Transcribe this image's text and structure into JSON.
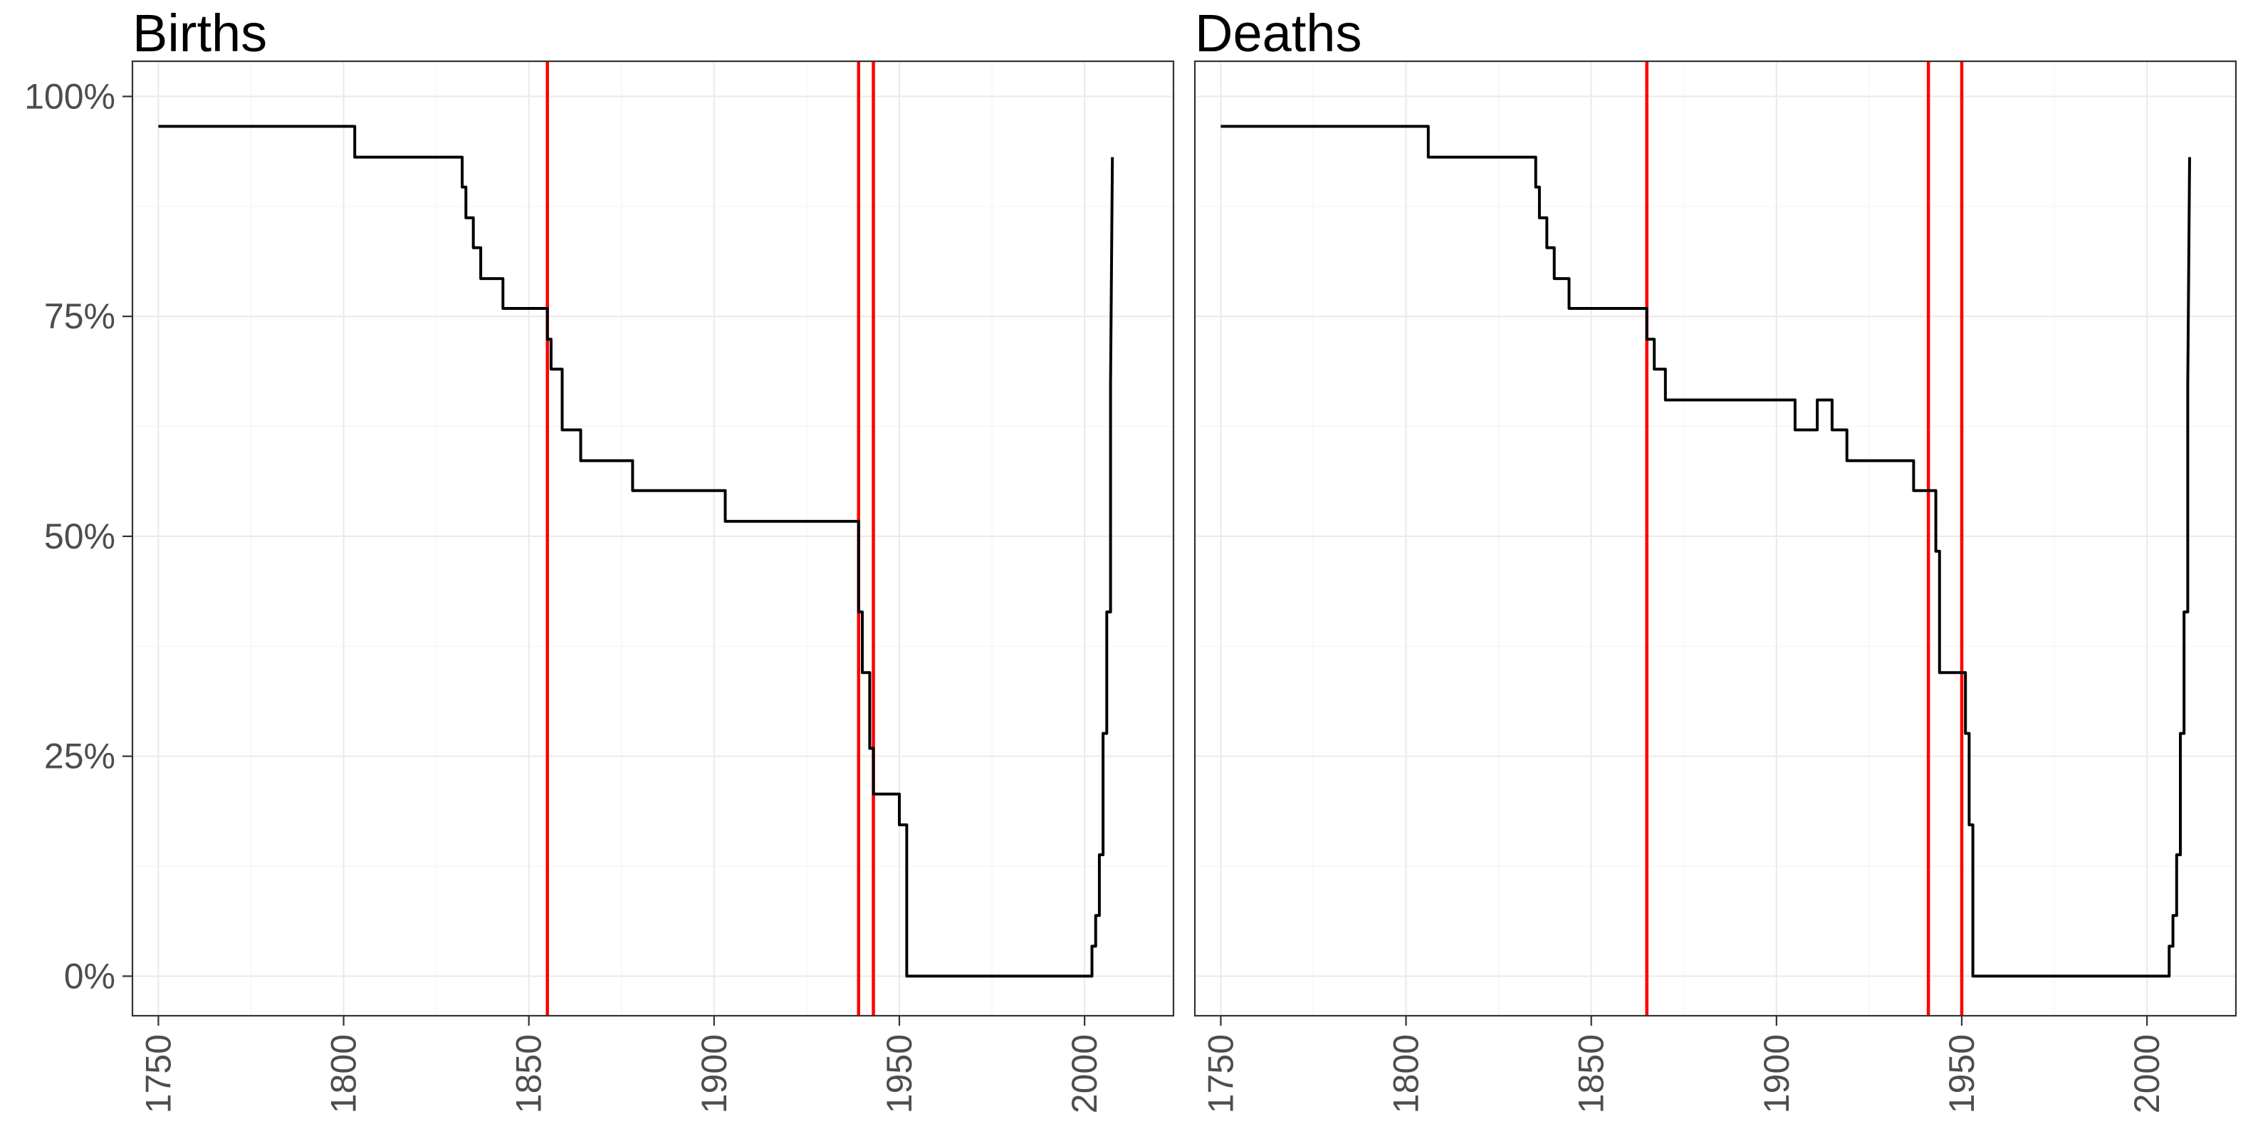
{
  "chart_data": [
    {
      "type": "line",
      "title": "Births",
      "xlabel": "",
      "ylabel": "",
      "xlim": [
        1743,
        2024
      ],
      "ylim": [
        -0.045,
        1.04
      ],
      "x_ticks": [
        1750,
        1800,
        1850,
        1900,
        1950,
        2000
      ],
      "x_tick_labels": [
        "1750",
        "1800",
        "1850",
        "1900",
        "1950",
        "2000"
      ],
      "y_ticks": [
        0,
        0.25,
        0.5,
        0.75,
        1.0
      ],
      "y_tick_labels": [
        "0%",
        "25%",
        "50%",
        "75%",
        "100%"
      ],
      "grid": true,
      "vlines": [
        1855,
        1939,
        1943
      ],
      "vline_color": "#ff0000",
      "line_color": "#000000",
      "series": [
        {
          "x": [
            1750,
            1803,
            1803,
            1832,
            1832,
            1833,
            1833,
            1835,
            1835,
            1837,
            1837,
            1843,
            1843,
            1846,
            1846,
            1855,
            1855,
            1856,
            1856,
            1859,
            1859,
            1864,
            1864,
            1878,
            1878,
            1903,
            1903,
            1917,
            1917,
            1939,
            1939,
            1940,
            1940,
            1942,
            1942,
            1943,
            1943,
            1950,
            1950,
            1952,
            1952,
            2002,
            2002,
            2003,
            2003,
            2004,
            2004,
            2005,
            2005,
            2006,
            2006,
            2007,
            2007,
            2007.5
          ],
          "y": [
            0.966,
            0.966,
            0.931,
            0.931,
            0.897,
            0.897,
            0.862,
            0.862,
            0.828,
            0.828,
            0.793,
            0.793,
            0.759,
            0.759,
            0.759,
            0.759,
            0.724,
            0.724,
            0.69,
            0.69,
            0.621,
            0.621,
            0.586,
            0.586,
            0.552,
            0.552,
            0.517,
            0.517,
            0.517,
            0.517,
            0.414,
            0.414,
            0.345,
            0.345,
            0.259,
            0.259,
            0.207,
            0.207,
            0.172,
            0.172,
            0.0,
            0.0,
            0.034,
            0.034,
            0.069,
            0.069,
            0.138,
            0.138,
            0.276,
            0.276,
            0.414,
            0.414,
            0.672,
            0.931
          ]
        }
      ]
    },
    {
      "type": "line",
      "title": "Deaths",
      "xlabel": "",
      "ylabel": "",
      "xlim": [
        1743,
        2024
      ],
      "ylim": [
        -0.045,
        1.04
      ],
      "x_ticks": [
        1750,
        1800,
        1850,
        1900,
        1950,
        2000
      ],
      "x_tick_labels": [
        "1750",
        "1800",
        "1850",
        "1900",
        "1950",
        "2000"
      ],
      "y_ticks": [
        0,
        0.25,
        0.5,
        0.75,
        1.0
      ],
      "y_tick_labels": [
        "0%",
        "25%",
        "50%",
        "75%",
        "100%"
      ],
      "grid": true,
      "vlines": [
        1865,
        1941,
        1950
      ],
      "vline_color": "#ff0000",
      "line_color": "#000000",
      "series": [
        {
          "x": [
            1750,
            1806,
            1806,
            1835,
            1835,
            1836,
            1836,
            1838,
            1838,
            1840,
            1840,
            1844,
            1844,
            1847,
            1847,
            1865,
            1865,
            1867,
            1867,
            1870,
            1870,
            1905,
            1905,
            1911,
            1911,
            1915,
            1915,
            1919,
            1919,
            1937,
            1937,
            1943,
            1943,
            1944,
            1944,
            1951,
            1951,
            1952,
            1952,
            1953,
            1953,
            2006,
            2006,
            2007,
            2007,
            2008,
            2008,
            2009,
            2009,
            2010,
            2010,
            2011,
            2011,
            2011.5
          ],
          "y": [
            0.966,
            0.966,
            0.931,
            0.931,
            0.897,
            0.897,
            0.862,
            0.862,
            0.828,
            0.828,
            0.793,
            0.793,
            0.759,
            0.759,
            0.759,
            0.759,
            0.724,
            0.724,
            0.69,
            0.69,
            0.655,
            0.655,
            0.621,
            0.621,
            0.655,
            0.655,
            0.621,
            0.621,
            0.586,
            0.586,
            0.552,
            0.552,
            0.483,
            0.483,
            0.345,
            0.345,
            0.276,
            0.276,
            0.172,
            0.172,
            0.0,
            0.0,
            0.034,
            0.034,
            0.069,
            0.069,
            0.138,
            0.138,
            0.276,
            0.276,
            0.414,
            0.414,
            0.672,
            0.931
          ]
        }
      ]
    }
  ]
}
